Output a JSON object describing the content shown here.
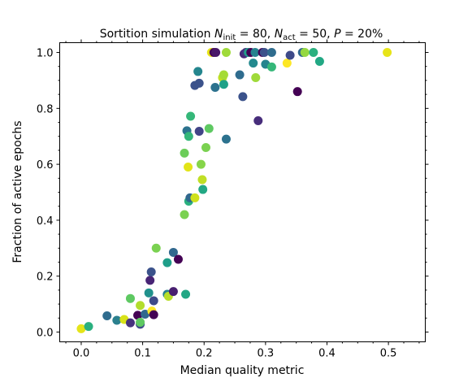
{
  "chart_data": {
    "type": "scatter",
    "title": {
      "prefix": "Sortition simulation ",
      "n_init_sub": "init",
      "n_init_value": " = 80, ",
      "n_act_sub": "act",
      "n_act_value": " = 50, ",
      "p_text": "P",
      "p_value": " = 20%"
    },
    "xlabel": "Median quality metric",
    "ylabel": "Fraction of active epochs",
    "xlim": [
      -0.035,
      0.56
    ],
    "ylim": [
      -0.035,
      1.035
    ],
    "xticks": [
      0.0,
      0.1,
      0.2,
      0.3,
      0.4,
      0.5
    ],
    "xtick_labels": [
      "0.0",
      "0.1",
      "0.2",
      "0.3",
      "0.4",
      "0.5"
    ],
    "yticks": [
      0.0,
      0.2,
      0.4,
      0.6,
      0.8,
      1.0
    ],
    "ytick_labels": [
      "0.0",
      "0.2",
      "0.4",
      "0.6",
      "0.8",
      "1.0"
    ],
    "grid": false,
    "colormap": "viridis",
    "points": [
      {
        "x": 0.0,
        "y": 0.012,
        "color": "#e4e419"
      },
      {
        "x": 0.012,
        "y": 0.02,
        "color": "#2ab07f"
      },
      {
        "x": 0.042,
        "y": 0.058,
        "color": "#2f6c8e"
      },
      {
        "x": 0.058,
        "y": 0.042,
        "color": "#2b808e"
      },
      {
        "x": 0.07,
        "y": 0.045,
        "color": "#d8e219"
      },
      {
        "x": 0.08,
        "y": 0.033,
        "color": "#46327e"
      },
      {
        "x": 0.08,
        "y": 0.12,
        "color": "#5ec962"
      },
      {
        "x": 0.092,
        "y": 0.06,
        "color": "#440154"
      },
      {
        "x": 0.096,
        "y": 0.028,
        "color": "#3e4a89"
      },
      {
        "x": 0.096,
        "y": 0.035,
        "color": "#5ec962"
      },
      {
        "x": 0.096,
        "y": 0.095,
        "color": "#b2dd2d"
      },
      {
        "x": 0.104,
        "y": 0.064,
        "color": "#31688e"
      },
      {
        "x": 0.11,
        "y": 0.14,
        "color": "#21918c"
      },
      {
        "x": 0.112,
        "y": 0.185,
        "color": "#482475"
      },
      {
        "x": 0.114,
        "y": 0.215,
        "color": "#3b528b"
      },
      {
        "x": 0.115,
        "y": 0.075,
        "color": "#fde725"
      },
      {
        "x": 0.118,
        "y": 0.062,
        "color": "#440154"
      },
      {
        "x": 0.118,
        "y": 0.112,
        "color": "#3e4a89"
      },
      {
        "x": 0.122,
        "y": 0.3,
        "color": "#7ad151"
      },
      {
        "x": 0.14,
        "y": 0.248,
        "color": "#1f9e89"
      },
      {
        "x": 0.14,
        "y": 0.135,
        "color": "#26828e"
      },
      {
        "x": 0.142,
        "y": 0.128,
        "color": "#b8de29"
      },
      {
        "x": 0.15,
        "y": 0.285,
        "color": "#31688e"
      },
      {
        "x": 0.15,
        "y": 0.145,
        "color": "#481f70"
      },
      {
        "x": 0.158,
        "y": 0.26,
        "color": "#440154"
      },
      {
        "x": 0.168,
        "y": 0.42,
        "color": "#7ad151"
      },
      {
        "x": 0.17,
        "y": 0.135,
        "color": "#22a785"
      },
      {
        "x": 0.168,
        "y": 0.64,
        "color": "#6ccd5a"
      },
      {
        "x": 0.172,
        "y": 0.72,
        "color": "#2c728e"
      },
      {
        "x": 0.174,
        "y": 0.59,
        "color": "#e2e418"
      },
      {
        "x": 0.175,
        "y": 0.7,
        "color": "#34b679"
      },
      {
        "x": 0.175,
        "y": 0.468,
        "color": "#2ab07f"
      },
      {
        "x": 0.177,
        "y": 0.48,
        "color": "#31688e"
      },
      {
        "x": 0.178,
        "y": 0.772,
        "color": "#35b779"
      },
      {
        "x": 0.185,
        "y": 0.48,
        "color": "#cfe11c"
      },
      {
        "x": 0.185,
        "y": 0.882,
        "color": "#3b528b"
      },
      {
        "x": 0.19,
        "y": 0.932,
        "color": "#24868e"
      },
      {
        "x": 0.192,
        "y": 0.89,
        "color": "#3b528b"
      },
      {
        "x": 0.192,
        "y": 0.718,
        "color": "#414487"
      },
      {
        "x": 0.195,
        "y": 0.6,
        "color": "#86d549"
      },
      {
        "x": 0.197,
        "y": 0.545,
        "color": "#c0df25"
      },
      {
        "x": 0.198,
        "y": 0.51,
        "color": "#22a884"
      },
      {
        "x": 0.203,
        "y": 0.66,
        "color": "#7ad151"
      },
      {
        "x": 0.208,
        "y": 0.728,
        "color": "#5ec962"
      },
      {
        "x": 0.212,
        "y": 1.0,
        "color": "#e7e419"
      },
      {
        "x": 0.216,
        "y": 1.0,
        "color": "#440154"
      },
      {
        "x": 0.219,
        "y": 1.0,
        "color": "#481769"
      },
      {
        "x": 0.218,
        "y": 0.875,
        "color": "#2c728e"
      },
      {
        "x": 0.23,
        "y": 0.91,
        "color": "#c2df23"
      },
      {
        "x": 0.232,
        "y": 0.92,
        "color": "#a5db36"
      },
      {
        "x": 0.232,
        "y": 0.886,
        "color": "#1fa187"
      },
      {
        "x": 0.236,
        "y": 1.0,
        "color": "#9fda3a"
      },
      {
        "x": 0.236,
        "y": 0.69,
        "color": "#2c728e"
      },
      {
        "x": 0.258,
        "y": 0.92,
        "color": "#2f6c8e"
      },
      {
        "x": 0.263,
        "y": 0.842,
        "color": "#3b528b"
      },
      {
        "x": 0.265,
        "y": 0.995,
        "color": "#482878"
      },
      {
        "x": 0.268,
        "y": 1.0,
        "color": "#46327e"
      },
      {
        "x": 0.272,
        "y": 1.0,
        "color": "#1f9e89"
      },
      {
        "x": 0.276,
        "y": 1.0,
        "color": "#440154"
      },
      {
        "x": 0.28,
        "y": 0.962,
        "color": "#23898e"
      },
      {
        "x": 0.284,
        "y": 0.91,
        "color": "#9fda3a"
      },
      {
        "x": 0.288,
        "y": 0.756,
        "color": "#472d7b"
      },
      {
        "x": 0.283,
        "y": 1.0,
        "color": "#26828e"
      },
      {
        "x": 0.295,
        "y": 1.0,
        "color": "#440154"
      },
      {
        "x": 0.298,
        "y": 1.0,
        "color": "#3b528b"
      },
      {
        "x": 0.3,
        "y": 0.958,
        "color": "#25848e"
      },
      {
        "x": 0.31,
        "y": 1.0,
        "color": "#2f6c8e"
      },
      {
        "x": 0.31,
        "y": 0.948,
        "color": "#35b779"
      },
      {
        "x": 0.335,
        "y": 0.962,
        "color": "#fde725"
      },
      {
        "x": 0.34,
        "y": 0.99,
        "color": "#3e4a89"
      },
      {
        "x": 0.352,
        "y": 0.86,
        "color": "#440154"
      },
      {
        "x": 0.36,
        "y": 1.0,
        "color": "#31688e"
      },
      {
        "x": 0.364,
        "y": 1.0,
        "color": "#95d840"
      },
      {
        "x": 0.378,
        "y": 1.0,
        "color": "#2ab07f"
      },
      {
        "x": 0.388,
        "y": 0.968,
        "color": "#22a884"
      },
      {
        "x": 0.498,
        "y": 1.0,
        "color": "#e7e419"
      }
    ]
  }
}
